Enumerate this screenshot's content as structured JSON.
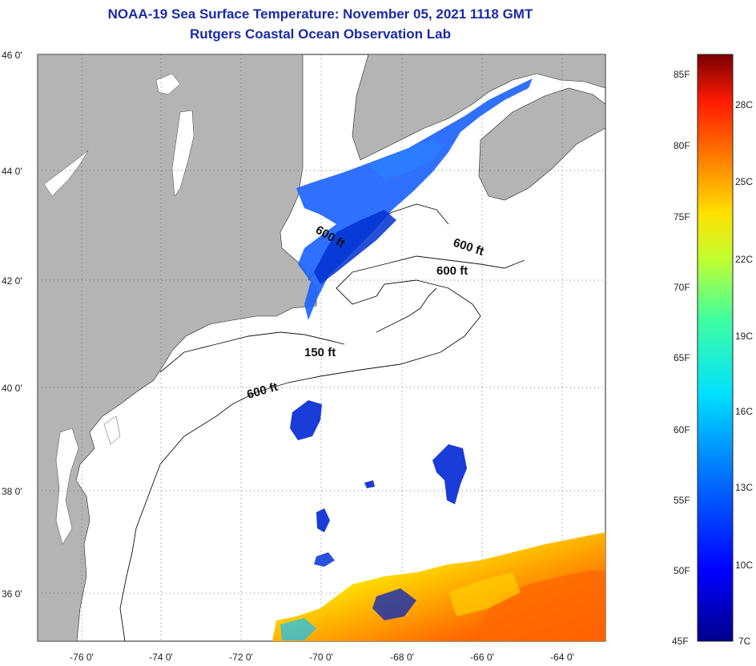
{
  "title": "NOAA-19 Sea Surface Temperature:  November 05, 2021 1118 GMT",
  "subtitle": "Rutgers Coastal Ocean Observation Lab",
  "lat_labels": [
    "46 0'",
    "44 0'",
    "42 0'",
    "40 0'",
    "38 0'",
    "36 0'"
  ],
  "lon_labels": [
    "-76 0'",
    "-74 0'",
    "-72 0'",
    "-70 0'",
    "-68 0'",
    "-66 0'",
    "-64 0'"
  ],
  "contours": [
    "600 ft",
    "600 ft",
    "600 ft",
    "150 ft",
    "600 ft"
  ],
  "colorbar": {
    "fahrenheit": [
      "85F",
      "80F",
      "75F",
      "70F",
      "65F",
      "60F",
      "55F",
      "50F",
      "45F"
    ],
    "celsius": [
      "28C",
      "25C",
      "22C",
      "19C",
      "16C",
      "13C",
      "10C",
      "7C"
    ]
  },
  "colors": {
    "land": "#b4b4b4",
    "title": "#1a2aa8"
  }
}
